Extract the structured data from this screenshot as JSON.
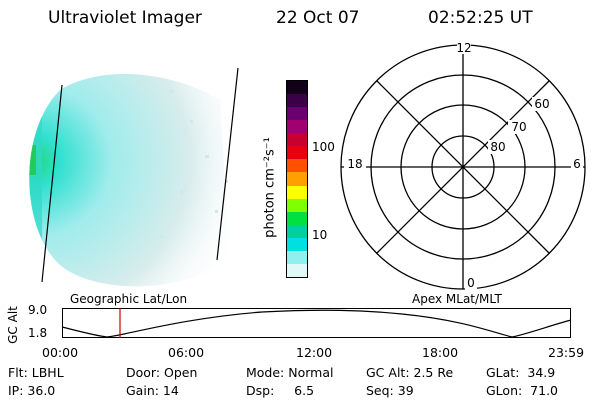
{
  "header": {
    "instrument": "Ultraviolet Imager",
    "date": "22 Oct 07",
    "time": "02:52:25 UT"
  },
  "colorbar": {
    "unit_label": "photon cm⁻²s⁻¹",
    "ticks": [
      "100",
      "10"
    ],
    "colors": [
      "#110018",
      "#3a0048",
      "#6a0070",
      "#a00070",
      "#c80030",
      "#e80010",
      "#ff5000",
      "#ffa000",
      "#ffff00",
      "#80ff00",
      "#00e040",
      "#00d0a0",
      "#00e0e0",
      "#90f0f0",
      "#e0f8f8"
    ]
  },
  "polar_plot": {
    "mlt_labels": [
      "12",
      "18",
      "6",
      "0"
    ],
    "lat_labels": [
      "60",
      "70",
      "80"
    ]
  },
  "altitude_strip": {
    "title_left": "Geographic Lat/Lon",
    "title_right": "Apex MLat/MLT",
    "y_axis_label": "GC Alt",
    "y_ticks": [
      "9.0",
      "1.8"
    ],
    "x_ticks": [
      "00:00",
      "06:00",
      "12:00",
      "18:00",
      "23:59"
    ]
  },
  "status": {
    "flt": "Flt: LBHL",
    "door": "Door: Open",
    "mode": "Mode: Normal",
    "gc_alt": "GC Alt: 2.5 Re",
    "glat": "GLat:  34.9",
    "ip": "IP: 36.0",
    "gain": "Gain: 14",
    "dsp": "Dsp:     6.5",
    "seq": "Seq: 39",
    "glon": "GLon:  71.0"
  }
}
